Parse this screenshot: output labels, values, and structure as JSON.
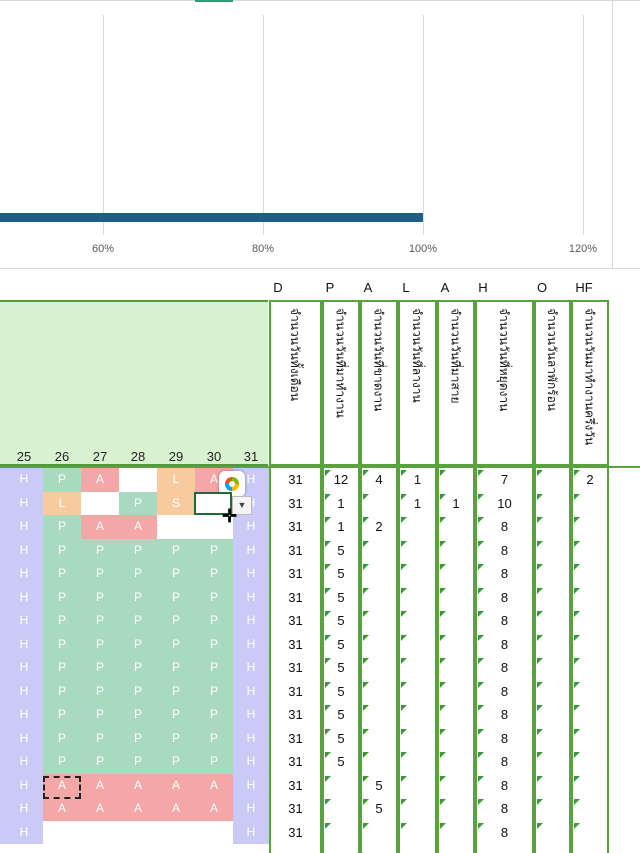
{
  "chart": {
    "chart_data": {
      "type": "bar",
      "orientation": "horizontal",
      "x_tick_labels": [
        "60%",
        "80%",
        "100%",
        "120%"
      ],
      "values": [
        1.0
      ],
      "bar_color": "#1f5f85",
      "grid": true
    }
  },
  "sheet": {
    "day_headers": [
      "25",
      "26",
      "27",
      "28",
      "29",
      "30",
      "31"
    ],
    "code_headers": [
      "D",
      "P",
      "A",
      "L",
      "A",
      "H",
      "O",
      "HF"
    ],
    "col_titles": [
      "จำนวนวันทั้งเดือน",
      "จำนวนวันที่มาทำงาน",
      "จำนวนวันที่ขาดงาน",
      "จำนวนวันที่ลางาน",
      "จำนวนวันที่มาสาย",
      "จำนวนวันที่หยุดงาน",
      "จำนวนวันลาพักร้อน",
      "จำนวนวันมาทำงานครึ่งวัน"
    ],
    "colors": {
      "H": "#c9caf5",
      "P": "#a9d9bf",
      "A": "#f4a7a7",
      "L": "#f8cb9f",
      "S": "#f8cb9f",
      "blank": "#ffffff",
      "header_band": "#d9f2d0",
      "grid_border": "#58a33e"
    },
    "rows": [
      {
        "days": [
          "H",
          "P",
          "A",
          "",
          "L",
          "A",
          "H"
        ],
        "totals": [
          "31",
          "12",
          "4",
          "1",
          "",
          "7",
          "",
          "2"
        ]
      },
      {
        "days": [
          "H",
          "L",
          "",
          "P",
          "S",
          "",
          "H"
        ],
        "totals": [
          "31",
          "1",
          "",
          "1",
          "1",
          "10",
          "",
          ""
        ]
      },
      {
        "days": [
          "H",
          "P",
          "A",
          "A",
          "",
          "",
          "H"
        ],
        "totals": [
          "31",
          "1",
          "2",
          "",
          "",
          "8",
          "",
          ""
        ]
      },
      {
        "days": [
          "H",
          "P",
          "P",
          "P",
          "P",
          "P",
          "H"
        ],
        "totals": [
          "31",
          "5",
          "",
          "",
          "",
          "8",
          "",
          ""
        ]
      },
      {
        "days": [
          "H",
          "P",
          "P",
          "P",
          "P",
          "P",
          "H"
        ],
        "totals": [
          "31",
          "5",
          "",
          "",
          "",
          "8",
          "",
          ""
        ]
      },
      {
        "days": [
          "H",
          "P",
          "P",
          "P",
          "P",
          "P",
          "H"
        ],
        "totals": [
          "31",
          "5",
          "",
          "",
          "",
          "8",
          "",
          ""
        ]
      },
      {
        "days": [
          "H",
          "P",
          "P",
          "P",
          "P",
          "P",
          "H"
        ],
        "totals": [
          "31",
          "5",
          "",
          "",
          "",
          "8",
          "",
          ""
        ]
      },
      {
        "days": [
          "H",
          "P",
          "P",
          "P",
          "P",
          "P",
          "H"
        ],
        "totals": [
          "31",
          "5",
          "",
          "",
          "",
          "8",
          "",
          ""
        ]
      },
      {
        "days": [
          "H",
          "P",
          "P",
          "P",
          "P",
          "P",
          "H"
        ],
        "totals": [
          "31",
          "5",
          "",
          "",
          "",
          "8",
          "",
          ""
        ]
      },
      {
        "days": [
          "H",
          "P",
          "P",
          "P",
          "P",
          "P",
          "H"
        ],
        "totals": [
          "31",
          "5",
          "",
          "",
          "",
          "8",
          "",
          ""
        ]
      },
      {
        "days": [
          "H",
          "P",
          "P",
          "P",
          "P",
          "P",
          "H"
        ],
        "totals": [
          "31",
          "5",
          "",
          "",
          "",
          "8",
          "",
          ""
        ]
      },
      {
        "days": [
          "H",
          "P",
          "P",
          "P",
          "P",
          "P",
          "H"
        ],
        "totals": [
          "31",
          "5",
          "",
          "",
          "",
          "8",
          "",
          ""
        ]
      },
      {
        "days": [
          "H",
          "P",
          "P",
          "P",
          "P",
          "P",
          "H"
        ],
        "totals": [
          "31",
          "5",
          "",
          "",
          "",
          "8",
          "",
          ""
        ]
      },
      {
        "days": [
          "H",
          "A",
          "A",
          "A",
          "A",
          "A",
          "H"
        ],
        "totals": [
          "31",
          "",
          "5",
          "",
          "",
          "8",
          "",
          ""
        ]
      },
      {
        "days": [
          "H",
          "A",
          "A",
          "A",
          "A",
          "A",
          "H"
        ],
        "totals": [
          "31",
          "",
          "5",
          "",
          "",
          "8",
          "",
          ""
        ]
      },
      {
        "days": [
          "H",
          "",
          "",
          "",
          "",
          "",
          "H"
        ],
        "totals": [
          "31",
          "",
          "",
          "",
          "",
          "8",
          "",
          ""
        ]
      }
    ],
    "icons": {
      "copilot": "copilot-icon",
      "dropdown": "dropdown-arrow-icon",
      "cursor": "crosshair-cursor-icon"
    }
  }
}
